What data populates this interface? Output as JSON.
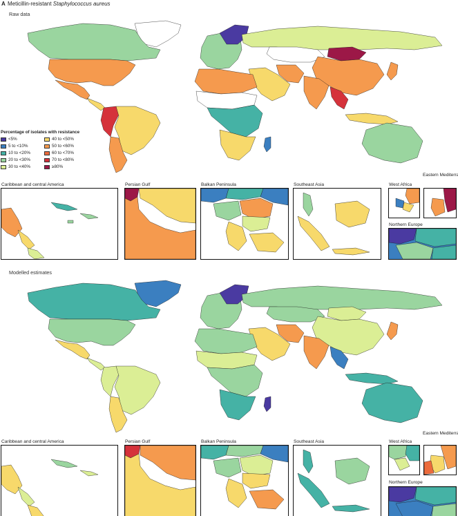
{
  "panel_letter": "A",
  "figure_title": "Meticillin-resistant Staphylococcus aureus",
  "sections": {
    "raw": {
      "label": "Raw data"
    },
    "modelled": {
      "label": "Modelled estimates"
    }
  },
  "legend": {
    "title": "Percentage of isolates with resistance",
    "items": [
      {
        "label": "<5%",
        "color": "#4a3aa1"
      },
      {
        "label": "5 to <10%",
        "color": "#3b7fc0"
      },
      {
        "label": "10 to <20%",
        "color": "#45b2a5"
      },
      {
        "label": "20 to <30%",
        "color": "#9ad59f"
      },
      {
        "label": "30 to <40%",
        "color": "#dbee95"
      },
      {
        "label": "40 to <50%",
        "color": "#f7d96b"
      },
      {
        "label": "50 to <60%",
        "color": "#f59a4e"
      },
      {
        "label": "60 to <70%",
        "color": "#ec6b3c"
      },
      {
        "label": "70 to <80%",
        "color": "#d5323b"
      },
      {
        "label": "≥80%",
        "color": "#9c1847"
      }
    ]
  },
  "insets": [
    {
      "label": "Caribbean and central America"
    },
    {
      "label": "Persian Gulf"
    },
    {
      "label": "Balkan Peninsula"
    },
    {
      "label": "Southeast Asia"
    },
    {
      "label": "West Africa"
    },
    {
      "label": "Eastern Mediterranean"
    },
    {
      "label": "Northern Europe"
    }
  ],
  "regions_raw": {
    "canada": "#9ad59f",
    "usa": "#f59a4e",
    "mexico": "#f59a4e",
    "central_america": "#f7d96b",
    "greenland": "#ffffff",
    "andes": "#d5323b",
    "brazil": "#f7d96b",
    "south_cone": "#f59a4e",
    "europe": "#9ad59f",
    "scandinavia": "#4a3aa1",
    "russia": "#dbee95",
    "china": "#f59a4e",
    "mongolia": "#9c1847",
    "india": "#f59a4e",
    "middle_east": "#f7d96b",
    "north_africa": "#f59a4e",
    "sahel": "#ffffff",
    "central_africa": "#45b2a5",
    "southern_africa": "#f7d96b",
    "madagascar": "#3b7fc0",
    "australia": "#9ad59f",
    "se_asia": "#d5323b",
    "indonesia": "#f7d96b",
    "japan": "#f59a4e",
    "kazakhstan": "#ffffff",
    "iran": "#f59a4e"
  },
  "regions_model": {
    "canada": "#45b2a5",
    "usa": "#9ad59f",
    "mexico": "#f7d96b",
    "central_america": "#dbee95",
    "greenland": "#3b7fc0",
    "andes": "#dbee95",
    "brazil": "#dbee95",
    "south_cone": "#f7d96b",
    "europe": "#9ad59f",
    "scandinavia": "#4a3aa1",
    "russia": "#9ad59f",
    "china": "#dbee95",
    "mongolia": "#dbee95",
    "india": "#f59a4e",
    "middle_east": "#f7d96b",
    "north_africa": "#9ad59f",
    "sahel": "#dbee95",
    "central_africa": "#9ad59f",
    "southern_africa": "#45b2a5",
    "madagascar": "#4a3aa1",
    "australia": "#45b2a5",
    "se_asia": "#3b7fc0",
    "indonesia": "#45b2a5",
    "japan": "#f59a4e",
    "kazakhstan": "#9ad59f",
    "iran": "#f59a4e"
  }
}
